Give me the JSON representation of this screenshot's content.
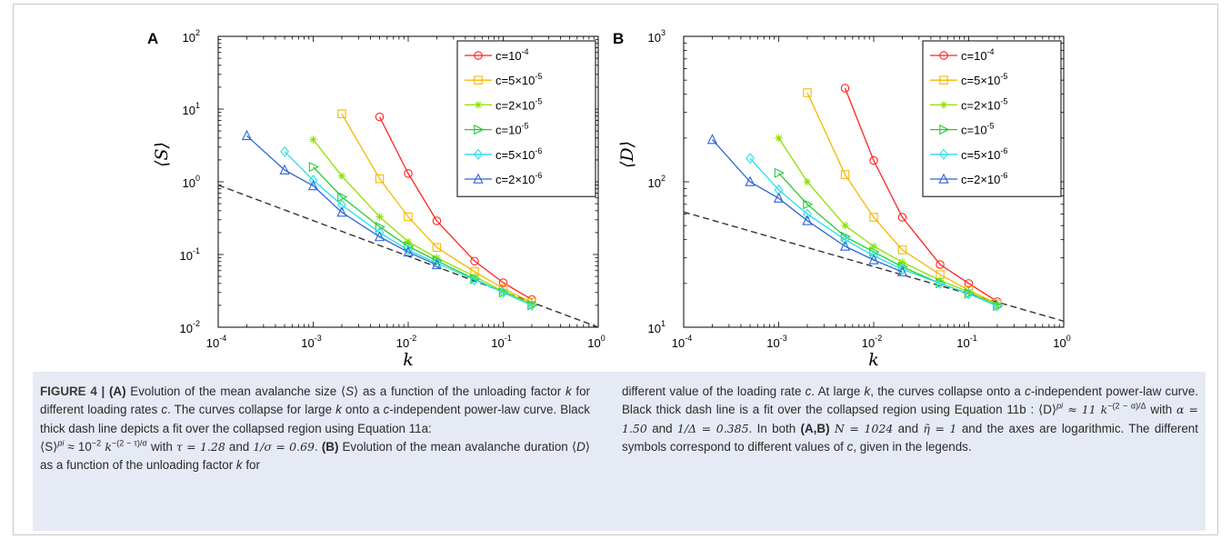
{
  "figure": {
    "panels": [
      {
        "letter": "A",
        "ylabel": "⟨S⟩",
        "xlabel": "k",
        "chart_data": {
          "type": "line",
          "x_scale": "log",
          "y_scale": "log",
          "xlim": [
            0.0001,
            1
          ],
          "ylim": [
            0.01,
            100
          ],
          "legend": "top-right",
          "grid": false,
          "series": [
            {
              "name": "c=10^-4",
              "color": "#ff2222",
              "marker": "circle",
              "x": [
                0.005,
                0.01,
                0.02,
                0.05,
                0.1,
                0.2
              ],
              "y": [
                7.8,
                1.3,
                0.29,
                0.081,
                0.041,
                0.024
              ]
            },
            {
              "name": "c=5×10^-5",
              "color": "#f5b700",
              "marker": "square",
              "x": [
                0.002,
                0.005,
                0.01,
                0.02,
                0.05,
                0.1,
                0.2
              ],
              "y": [
                8.6,
                1.1,
                0.33,
                0.125,
                0.058,
                0.034,
                0.022
              ]
            },
            {
              "name": "c=2×10^-5",
              "color": "#8ee000",
              "marker": "star",
              "x": [
                0.001,
                0.002,
                0.005,
                0.01,
                0.02,
                0.05,
                0.1,
                0.2
              ],
              "y": [
                3.8,
                1.2,
                0.33,
                0.15,
                0.09,
                0.05,
                0.031,
                0.021
              ]
            },
            {
              "name": "c=10^-5",
              "color": "#22cc33",
              "marker": "triangle-right",
              "x": [
                0.001,
                0.002,
                0.005,
                0.01,
                0.02,
                0.05,
                0.1,
                0.2
              ],
              "y": [
                1.6,
                0.62,
                0.24,
                0.13,
                0.082,
                0.046,
                0.03,
                0.02
              ]
            },
            {
              "name": "c=5×10^-6",
              "color": "#22e0f0",
              "marker": "diamond",
              "x": [
                0.0005,
                0.001,
                0.002,
                0.005,
                0.01,
                0.02,
                0.05,
                0.1,
                0.2
              ],
              "y": [
                2.6,
                1.05,
                0.48,
                0.2,
                0.115,
                0.076,
                0.045,
                0.03,
                0.02
              ]
            },
            {
              "name": "c=2×10^-6",
              "color": "#2e63d8",
              "marker": "triangle-up",
              "x": [
                0.0002,
                0.0005,
                0.001,
                0.002,
                0.005,
                0.01,
                0.02
              ],
              "y": [
                4.3,
                1.45,
                0.88,
                0.38,
                0.175,
                0.108,
                0.072
              ]
            }
          ],
          "fit": {
            "style": "dashed",
            "color": "#333333",
            "x": [
              0.0001,
              1
            ],
            "y": [
              0.9,
              0.01
            ]
          },
          "xticks": [
            {
              "base": "10",
              "exp": "-4"
            },
            {
              "base": "10",
              "exp": "-3"
            },
            {
              "base": "10",
              "exp": "-2"
            },
            {
              "base": "10",
              "exp": "-1"
            },
            {
              "base": "10",
              "exp": "0"
            }
          ],
          "yticks": [
            {
              "base": "10",
              "exp": "-2"
            },
            {
              "base": "10",
              "exp": "-1"
            },
            {
              "base": "10",
              "exp": "0"
            },
            {
              "base": "10",
              "exp": "1"
            },
            {
              "base": "10",
              "exp": "2"
            }
          ]
        }
      },
      {
        "letter": "B",
        "ylabel": "⟨D⟩",
        "xlabel": "k",
        "chart_data": {
          "type": "line",
          "x_scale": "log",
          "y_scale": "log",
          "xlim": [
            0.0001,
            1
          ],
          "ylim": [
            10,
            1000
          ],
          "legend": "top-right",
          "grid": false,
          "series": [
            {
              "name": "c=10^-4",
              "color": "#ff2222",
              "marker": "circle",
              "x": [
                0.005,
                0.01,
                0.02,
                0.05,
                0.1,
                0.2
              ],
              "y": [
                440,
                140,
                57,
                27,
                20,
                15
              ]
            },
            {
              "name": "c=5×10^-5",
              "color": "#f5b700",
              "marker": "square",
              "x": [
                0.002,
                0.005,
                0.01,
                0.02,
                0.05,
                0.1,
                0.2
              ],
              "y": [
                410,
                112,
                57,
                34,
                23,
                18,
                14.5
              ]
            },
            {
              "name": "c=2×10^-5",
              "color": "#8ee000",
              "marker": "star",
              "x": [
                0.001,
                0.002,
                0.005,
                0.01,
                0.02,
                0.05,
                0.1,
                0.2
              ],
              "y": [
                200,
                100,
                50,
                36,
                28,
                21,
                17.5,
                14.2
              ]
            },
            {
              "name": "c=10^-5",
              "color": "#22cc33",
              "marker": "triangle-right",
              "x": [
                0.001,
                0.002,
                0.005,
                0.01,
                0.02,
                0.05,
                0.1,
                0.2
              ],
              "y": [
                115,
                70,
                42,
                33,
                26,
                20,
                17,
                14
              ]
            },
            {
              "name": "c=5×10^-6",
              "color": "#22e0f0",
              "marker": "diamond",
              "x": [
                0.0005,
                0.001,
                0.002,
                0.005,
                0.01,
                0.02,
                0.05,
                0.1,
                0.2
              ],
              "y": [
                145,
                88,
                60,
                40,
                31,
                25,
                20,
                17,
                14
              ]
            },
            {
              "name": "c=2×10^-6",
              "color": "#2e63d8",
              "marker": "triangle-up",
              "x": [
                0.0002,
                0.0005,
                0.001,
                0.002,
                0.005,
                0.01,
                0.02
              ],
              "y": [
                195,
                100,
                77,
                54,
                36,
                29,
                24
              ]
            }
          ],
          "fit": {
            "style": "dashed",
            "color": "#333333",
            "x": [
              0.0001,
              1
            ],
            "y": [
              62,
              11
            ]
          },
          "xticks": [
            {
              "base": "10",
              "exp": "-4"
            },
            {
              "base": "10",
              "exp": "-3"
            },
            {
              "base": "10",
              "exp": "-2"
            },
            {
              "base": "10",
              "exp": "-1"
            },
            {
              "base": "10",
              "exp": "0"
            }
          ],
          "yticks": [
            {
              "base": "10",
              "exp": "1"
            },
            {
              "base": "10",
              "exp": "2"
            },
            {
              "base": "10",
              "exp": "3"
            }
          ]
        }
      }
    ],
    "legend": [
      {
        "text": "c=10",
        "exp": "-4"
      },
      {
        "text": "c=5×10",
        "exp": "-5"
      },
      {
        "text": "c=2×10",
        "exp": "-5"
      },
      {
        "text": "c=10",
        "exp": "-5"
      },
      {
        "text": "c=5×10",
        "exp": "-6"
      },
      {
        "text": "c=2×10",
        "exp": "-6"
      }
    ]
  },
  "caption": {
    "label": "FIGURE 4 | ",
    "left": {
      "a": "(A)",
      "p1": " Evolution of the mean avalanche size ⟨",
      "S1": "S",
      "p2": "⟩ as a function of the unloading factor ",
      "k1": "k",
      "p3": " for different loading rates ",
      "c1": "c",
      "p4": ". The curves collapse for large ",
      "k2": "k",
      "p5": " onto a ",
      "c2": "c",
      "p6": "-independent power-law curve. Black thick dash line depicts a fit over the collapsed region using Equation 11a:",
      "f_a1": "⟨S⟩",
      "f_a1sup": "pi",
      "f_a2": " ≈ 10",
      "f_a2sup": "−2",
      "f_a3": " k",
      "f_a3sup": "−(2 − τ)/σ",
      "p7": " with ",
      "tau": "τ = 1.28",
      "p8": " and ",
      "sigma": "1/σ = 0.69",
      "p9": ". ",
      "b": "(B)",
      "p10": " Evolution of the mean avalanche duration ⟨",
      "D1": "D",
      "p11": "⟩ as a function of the unloading factor ",
      "k3": "k",
      "p12": " for"
    },
    "right": {
      "p1": "different value of the loading rate ",
      "c1": "c",
      "p2": ". At large ",
      "k1": "k",
      "p3": ", the curves collapse onto a ",
      "c2": "c",
      "p4": "-independent power-law curve. Black thick dash line is a fit over the collapsed region using Equation 11b : ",
      "f_b1": "⟨D⟩",
      "f_b1sup": "pi",
      "f_b2": " ≈ 11 k",
      "f_b2sup": "−(2 − α)/Δ",
      "p5": " with ",
      "alpha": "α = 1.50",
      "p6": " and ",
      "delta": "1/Δ = 0.385",
      "p7": ". In both ",
      "ab": "(A,B)",
      "p8": " ",
      "N": "N = 1024",
      "p9": " and ",
      "eta": "η̃ = 1",
      "p10": " and the axes are logarithmic. The different symbols correspond to different values of ",
      "c3": "c",
      "p11": ", given in the legends."
    }
  }
}
